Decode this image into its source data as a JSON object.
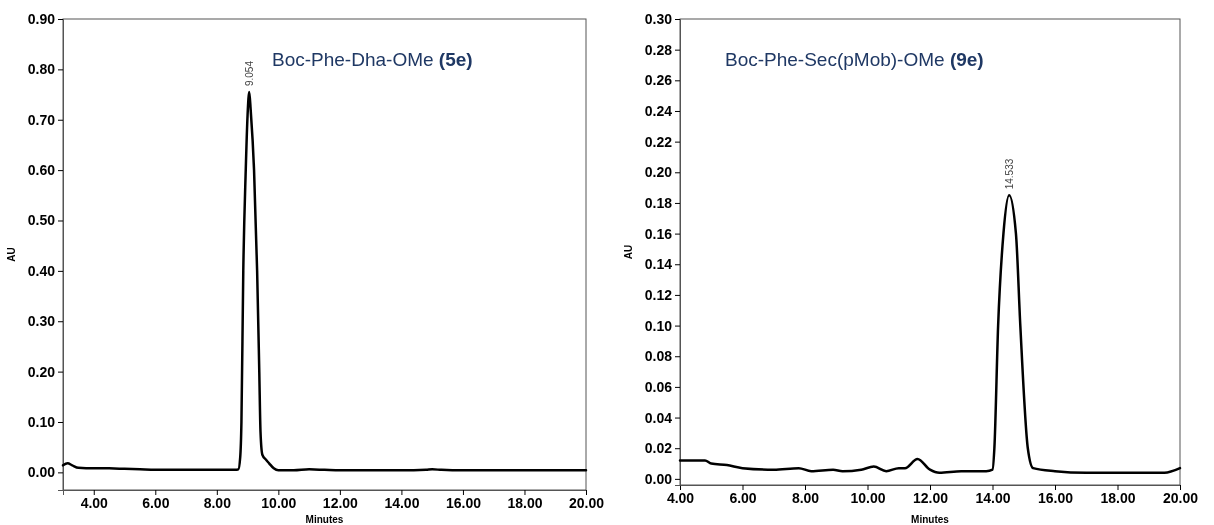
{
  "chart_data": [
    {
      "type": "line",
      "title": "Boc-Phe-Dha-OMe (5e)",
      "xlabel": "Minutes",
      "ylabel": "AU",
      "xlim": [
        3.0,
        20
      ],
      "ylim": [
        -0.035,
        0.9
      ],
      "xticks": [
        {
          "value": 4,
          "label": "4.00"
        },
        {
          "value": 6,
          "label": "6.00"
        },
        {
          "value": 8,
          "label": "8.00"
        },
        {
          "value": 10,
          "label": "10.00"
        },
        {
          "value": 12,
          "label": "12.00"
        },
        {
          "value": 14,
          "label": "14.00"
        },
        {
          "value": 16,
          "label": "16.00"
        },
        {
          "value": 18,
          "label": "18.00"
        },
        {
          "value": 20,
          "label": "20.00"
        }
      ],
      "yticks": [
        {
          "value": 0,
          "label": "0.00"
        },
        {
          "value": 0.1,
          "label": "0.10"
        },
        {
          "value": 0.2,
          "label": "0.20"
        },
        {
          "value": 0.3,
          "label": "0.30"
        },
        {
          "value": 0.4,
          "label": "0.40"
        },
        {
          "value": 0.5,
          "label": "0.50"
        },
        {
          "value": 0.6,
          "label": "0.60"
        },
        {
          "value": 0.7,
          "label": "0.70"
        },
        {
          "value": 0.8,
          "label": "0.80"
        },
        {
          "value": 0.9,
          "label": "0.90"
        }
      ],
      "grid": false,
      "marker": "none",
      "line_style": "solid",
      "annotations": [
        {
          "text": "9.054",
          "x": 9.054,
          "y": 0.755
        }
      ],
      "series": [
        {
          "color": "#000000",
          "x": [
            3.0,
            3.15,
            3.3,
            3.5,
            4.0,
            4.5,
            5.0,
            5.5,
            6.0,
            7.0,
            8.0,
            8.6,
            8.7,
            8.76,
            8.8,
            8.86,
            8.94,
            9.0,
            9.054,
            9.1,
            9.21,
            9.31,
            9.38,
            9.42,
            9.48,
            9.6,
            9.7,
            9.85,
            10.0,
            10.5,
            11.0,
            11.5,
            12.0,
            13.0,
            14.0,
            14.8,
            15.0,
            15.3,
            16.0,
            18.0,
            20.0
          ],
          "values": [
            0.014,
            0.018,
            0.014,
            0.009,
            0.008,
            0.008,
            0.007,
            0.006,
            0.005,
            0.005,
            0.005,
            0.005,
            0.006,
            0.03,
            0.1,
            0.4,
            0.6,
            0.71,
            0.755,
            0.72,
            0.6,
            0.4,
            0.2,
            0.08,
            0.035,
            0.025,
            0.018,
            0.008,
            0.004,
            0.004,
            0.006,
            0.005,
            0.004,
            0.004,
            0.004,
            0.005,
            0.006,
            0.005,
            0.004,
            0.004,
            0.004
          ]
        }
      ]
    },
    {
      "type": "line",
      "title": "Boc-Phe-Sec(pMob)-OMe (9e)",
      "xlabel": "Minutes",
      "ylabel": "AU",
      "xlim": [
        4,
        20
      ],
      "ylim": [
        -0.004,
        0.3
      ],
      "xticks": [
        {
          "value": 4,
          "label": "4.00"
        },
        {
          "value": 6,
          "label": "6.00"
        },
        {
          "value": 8,
          "label": "8.00"
        },
        {
          "value": 10,
          "label": "10.00"
        },
        {
          "value": 12,
          "label": "12.00"
        },
        {
          "value": 14,
          "label": "14.00"
        },
        {
          "value": 16,
          "label": "16.00"
        },
        {
          "value": 18,
          "label": "18.00"
        },
        {
          "value": 20,
          "label": "20.00"
        }
      ],
      "yticks": [
        {
          "value": 0,
          "label": "0.00"
        },
        {
          "value": 0.02,
          "label": "0.02"
        },
        {
          "value": 0.04,
          "label": "0.04"
        },
        {
          "value": 0.06,
          "label": "0.06"
        },
        {
          "value": 0.08,
          "label": "0.08"
        },
        {
          "value": 0.1,
          "label": "0.10"
        },
        {
          "value": 0.12,
          "label": "0.12"
        },
        {
          "value": 0.14,
          "label": "0.14"
        },
        {
          "value": 0.16,
          "label": "0.16"
        },
        {
          "value": 0.18,
          "label": "0.18"
        },
        {
          "value": 0.2,
          "label": "0.20"
        },
        {
          "value": 0.22,
          "label": "0.22"
        },
        {
          "value": 0.24,
          "label": "0.24"
        },
        {
          "value": 0.26,
          "label": "0.26"
        },
        {
          "value": 0.28,
          "label": "0.28"
        },
        {
          "value": 0.3,
          "label": "0.30"
        }
      ],
      "grid": false,
      "marker": "none",
      "line_style": "solid",
      "annotations": [
        {
          "text": "14.533",
          "x": 14.533,
          "y": 0.185
        }
      ],
      "series": [
        {
          "color": "#000000",
          "x": [
            4.0,
            4.5,
            4.8,
            5.0,
            5.5,
            6.0,
            7.0,
            7.8,
            8.2,
            8.9,
            9.2,
            9.8,
            10.2,
            10.6,
            11.0,
            11.2,
            11.6,
            12.0,
            12.3,
            13.0,
            13.8,
            14.0,
            14.06,
            14.18,
            14.35,
            14.533,
            14.75,
            14.89,
            15.13,
            15.3,
            16.0,
            17.0,
            18.0,
            19.5,
            20.0
          ],
          "values": [
            0.012,
            0.012,
            0.012,
            0.01,
            0.009,
            0.007,
            0.006,
            0.007,
            0.005,
            0.006,
            0.005,
            0.006,
            0.008,
            0.005,
            0.007,
            0.007,
            0.013,
            0.006,
            0.004,
            0.005,
            0.005,
            0.006,
            0.02,
            0.1,
            0.16,
            0.185,
            0.16,
            0.1,
            0.02,
            0.007,
            0.005,
            0.004,
            0.004,
            0.004,
            0.007
          ]
        }
      ]
    }
  ]
}
